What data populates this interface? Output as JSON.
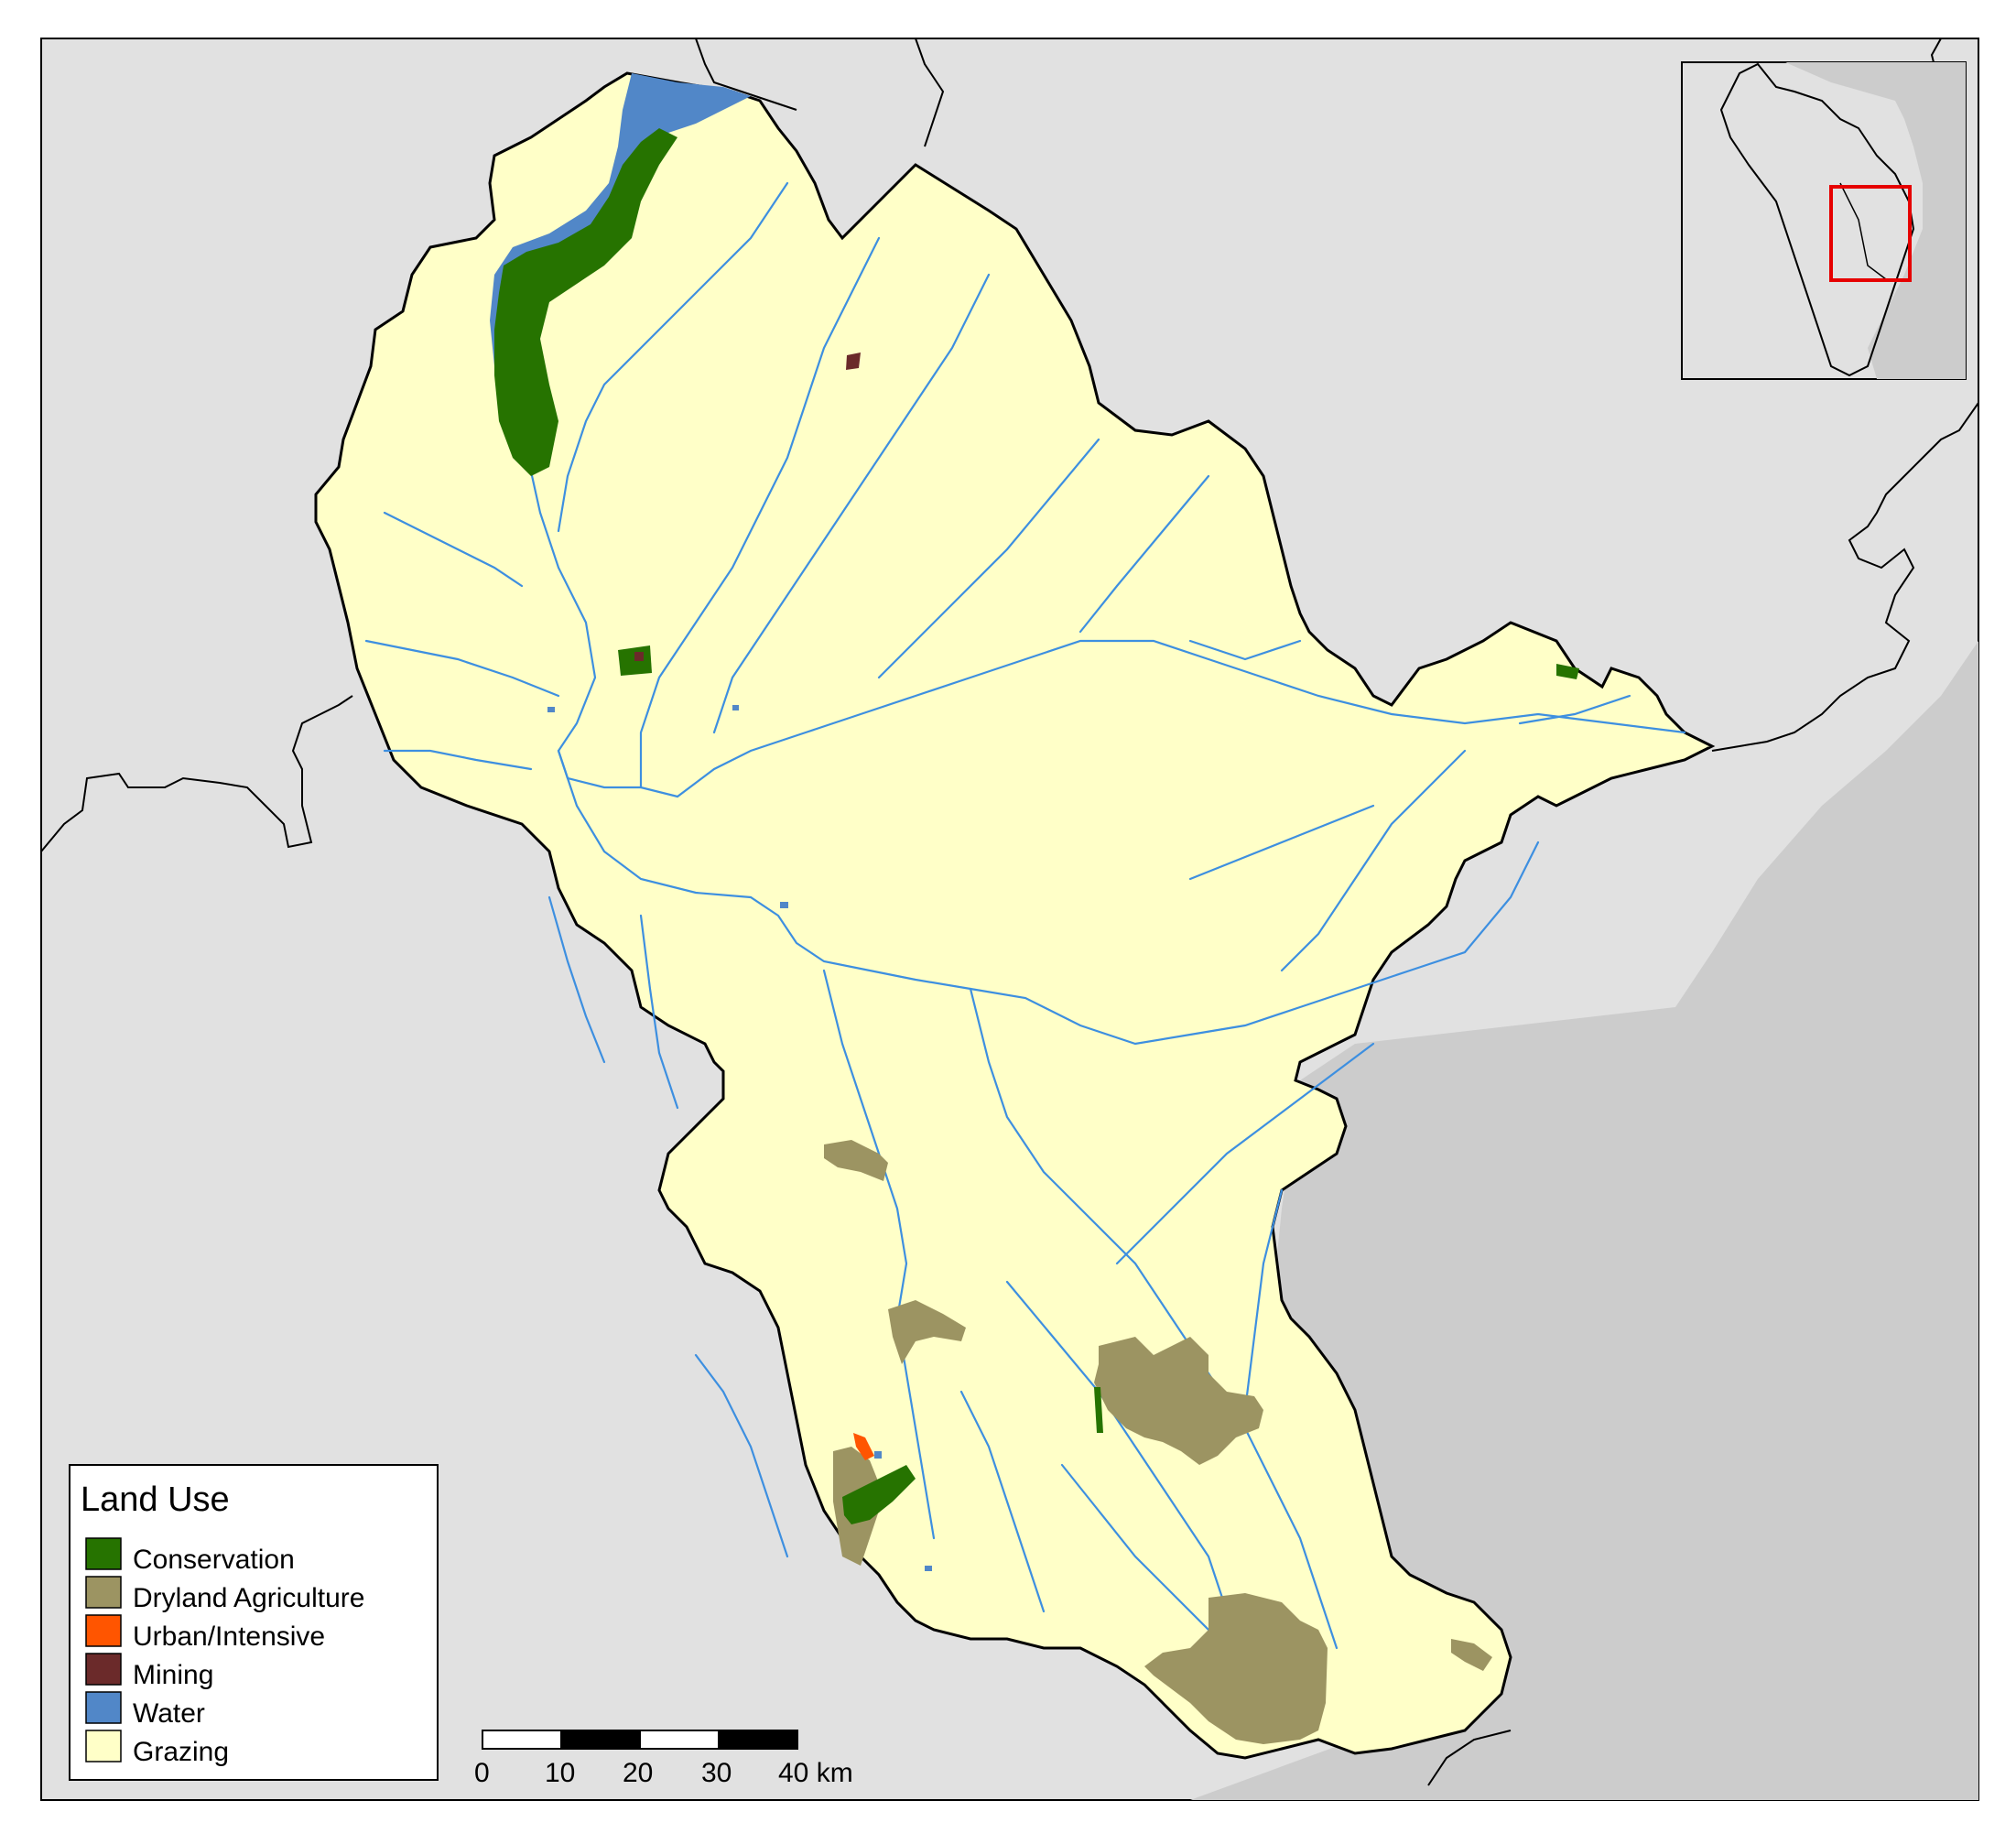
{
  "legend": {
    "title": "Land Use",
    "items": [
      {
        "label": "Conservation",
        "color": "#267300"
      },
      {
        "label": "Dryland Agriculture",
        "color": "#9C9462"
      },
      {
        "label": "Urban/Intensive",
        "color": "#FF5500"
      },
      {
        "label": "Mining",
        "color": "#6B2A2A"
      },
      {
        "label": "Water",
        "color": "#5187C8"
      },
      {
        "label": "Grazing",
        "color": "#FFFFC8"
      }
    ]
  },
  "scale_bar": {
    "ticks": [
      "0",
      "10",
      "20",
      "30",
      "40 km"
    ]
  },
  "colors": {
    "background_land": "#E1E1E1",
    "ocean": "#CCCCCC",
    "river": "#3D8FE0",
    "inset_highlight": "#E60000"
  },
  "icons": {
    "inset": "locator-map",
    "scale": "scale-bar"
  }
}
